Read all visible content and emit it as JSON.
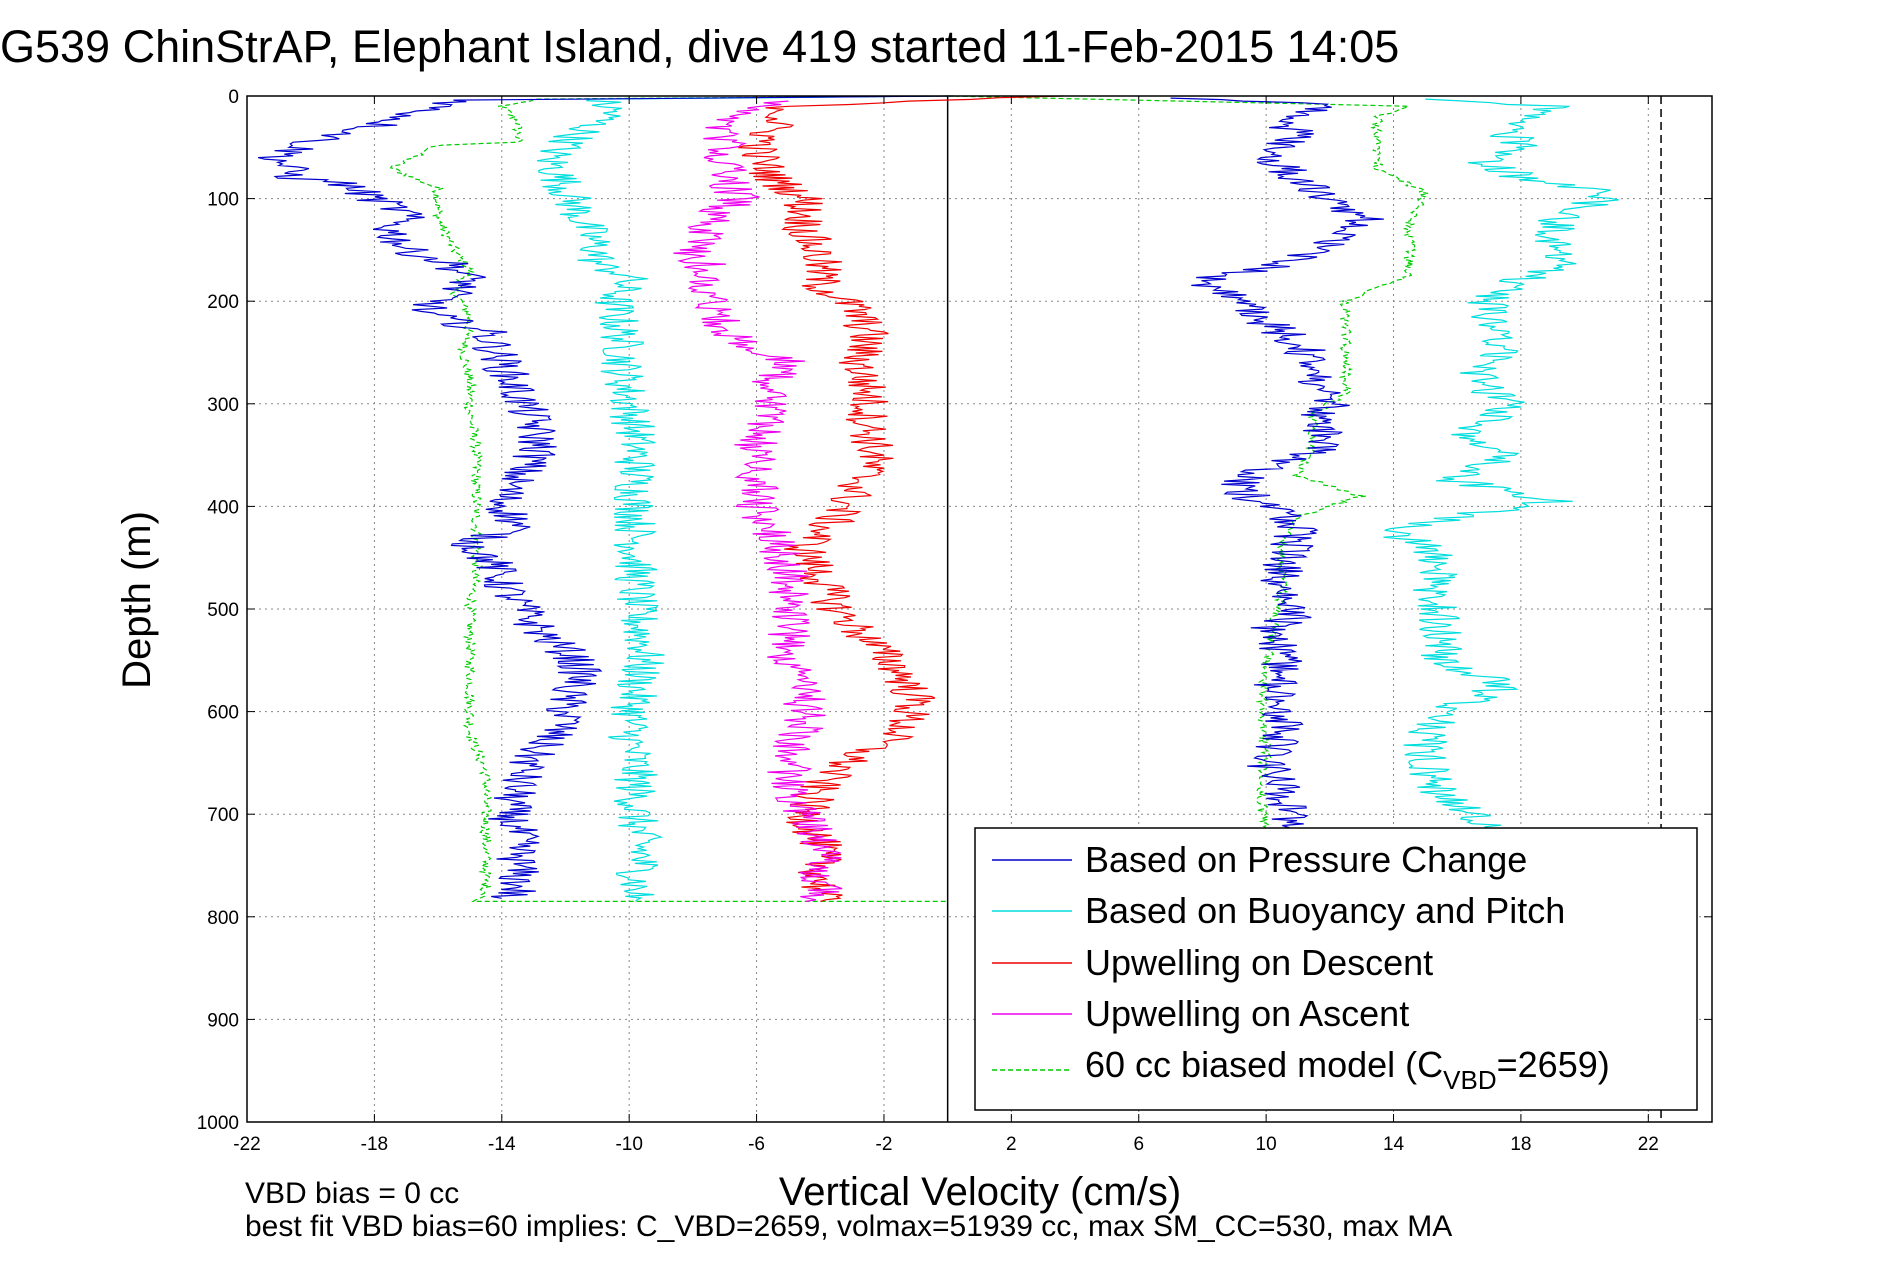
{
  "chart_data": {
    "type": "line",
    "title": "G539 ChinStrAP, Elephant Island, dive 419 started 11-Feb-2015 14:05",
    "xlabel": "Vertical Velocity (cm/s)",
    "ylabel": "Depth (m)",
    "xlim": [
      -22,
      24
    ],
    "ylim": [
      0,
      1000
    ],
    "y_reversed": true,
    "grid": true,
    "legend_position": "bottom-right",
    "xticks": [
      -22,
      -18,
      -14,
      -10,
      -6,
      -2,
      2,
      6,
      10,
      14,
      18,
      22
    ],
    "yticks": [
      0,
      100,
      200,
      300,
      400,
      500,
      600,
      700,
      800,
      900,
      1000
    ],
    "xtick_labels": [
      "-22",
      "-18",
      "-14",
      "-10",
      "-6",
      "-2",
      "2",
      "6",
      "10",
      "14",
      "18",
      "22"
    ],
    "ytick_labels": [
      "0",
      "100",
      "200",
      "300",
      "400",
      "500",
      "600",
      "700",
      "800",
      "900",
      "1000"
    ],
    "reference_lines": [
      {
        "axis": "x",
        "value": 0,
        "style": "solid",
        "color": "#000000"
      },
      {
        "axis": "x",
        "value": 22.4,
        "style": "dashed",
        "color": "#000000"
      }
    ],
    "series": [
      {
        "name": "Based on Pressure Change",
        "color": "#0000cc",
        "style": "solid",
        "descent": [
          [
            0,
            0
          ],
          [
            -15,
            4
          ],
          [
            -16,
            10
          ],
          [
            -18,
            30
          ],
          [
            -20,
            45
          ],
          [
            -21,
            60
          ],
          [
            -20.5,
            80
          ],
          [
            -19,
            85
          ],
          [
            -18,
            100
          ],
          [
            -17,
            115
          ],
          [
            -17.5,
            130
          ],
          [
            -17,
            150
          ],
          [
            -15.5,
            165
          ],
          [
            -15,
            180
          ],
          [
            -16,
            200
          ],
          [
            -16.5,
            210
          ],
          [
            -14.5,
            230
          ],
          [
            -14,
            260
          ],
          [
            -13.5,
            290
          ],
          [
            -13,
            320
          ],
          [
            -12.8,
            345
          ],
          [
            -13.5,
            370
          ],
          [
            -14,
            395
          ],
          [
            -13.5,
            420
          ],
          [
            -15,
            435
          ],
          [
            -14.3,
            455
          ],
          [
            -14,
            475
          ],
          [
            -13.5,
            495
          ],
          [
            -13,
            515
          ],
          [
            -12.5,
            530
          ],
          [
            -11.8,
            545
          ],
          [
            -11.5,
            565
          ],
          [
            -12,
            585
          ],
          [
            -12,
            610
          ],
          [
            -13,
            640
          ],
          [
            -13.5,
            670
          ],
          [
            -13.8,
            700
          ],
          [
            -13.5,
            720
          ],
          [
            -13.5,
            750
          ],
          [
            -13.5,
            775
          ],
          [
            -14,
            782
          ]
        ],
        "ascent": [
          [
            12,
            785
          ],
          [
            11,
            760
          ],
          [
            10.5,
            730
          ],
          [
            10.8,
            700
          ],
          [
            10.5,
            680
          ],
          [
            10,
            650
          ],
          [
            10.5,
            620
          ],
          [
            10.5,
            600
          ],
          [
            10.2,
            580
          ],
          [
            10.5,
            560
          ],
          [
            10.5,
            540
          ],
          [
            10,
            520
          ],
          [
            11,
            505
          ],
          [
            10.5,
            480
          ],
          [
            10.5,
            460
          ],
          [
            10.8,
            440
          ],
          [
            11,
            420
          ],
          [
            10,
            400
          ],
          [
            9,
            380
          ],
          [
            10,
            360
          ],
          [
            12,
            340
          ],
          [
            11.5,
            320
          ],
          [
            12,
            300
          ],
          [
            11.5,
            280
          ],
          [
            11.5,
            260
          ],
          [
            11,
            240
          ],
          [
            10,
            220
          ],
          [
            9.5,
            200
          ],
          [
            8,
            180
          ],
          [
            11,
            160
          ],
          [
            12,
            140
          ],
          [
            13,
            120
          ],
          [
            12,
            100
          ],
          [
            11,
            80
          ],
          [
            10,
            60
          ],
          [
            11,
            40
          ],
          [
            10.5,
            20
          ],
          [
            12,
            8
          ],
          [
            7,
            2
          ]
        ]
      },
      {
        "name": "Based on Buoyancy and Pitch",
        "color": "#00dddd",
        "style": "solid",
        "descent": [
          [
            0,
            0
          ],
          [
            -11,
            3
          ],
          [
            -10.5,
            15
          ],
          [
            -11.5,
            35
          ],
          [
            -12.5,
            60
          ],
          [
            -12,
            90
          ],
          [
            -11.5,
            120
          ],
          [
            -11,
            150
          ],
          [
            -11,
            165
          ],
          [
            -10,
            175
          ],
          [
            -10.5,
            200
          ],
          [
            -10.2,
            240
          ],
          [
            -10.2,
            270
          ],
          [
            -10,
            300
          ],
          [
            -9.8,
            330
          ],
          [
            -9.8,
            360
          ],
          [
            -9.8,
            390
          ],
          [
            -9.8,
            420
          ],
          [
            -9.8,
            460
          ],
          [
            -9.8,
            500
          ],
          [
            -9.5,
            540
          ],
          [
            -9.8,
            580
          ],
          [
            -10,
            620
          ],
          [
            -9.8,
            660
          ],
          [
            -9.8,
            700
          ],
          [
            -9.6,
            740
          ],
          [
            -9.8,
            775
          ],
          [
            -9.8,
            785
          ]
        ],
        "ascent": [
          [
            14.5,
            785
          ],
          [
            16,
            760
          ],
          [
            16.5,
            740
          ],
          [
            17.5,
            720
          ],
          [
            16.5,
            700
          ],
          [
            15.5,
            680
          ],
          [
            15,
            650
          ],
          [
            15,
            620
          ],
          [
            15.5,
            600
          ],
          [
            17.5,
            575
          ],
          [
            15.5,
            550
          ],
          [
            15.5,
            520
          ],
          [
            15.5,
            500
          ],
          [
            15,
            480
          ],
          [
            15.5,
            460
          ],
          [
            15,
            440
          ],
          [
            14,
            425
          ],
          [
            16,
            410
          ],
          [
            19,
            395
          ],
          [
            16,
            375
          ],
          [
            17.5,
            350
          ],
          [
            16.5,
            330
          ],
          [
            17.5,
            300
          ],
          [
            16.5,
            270
          ],
          [
            17.5,
            250
          ],
          [
            17,
            220
          ],
          [
            17,
            200
          ],
          [
            17.5,
            185
          ],
          [
            19.5,
            165
          ],
          [
            19,
            140
          ],
          [
            19,
            120
          ],
          [
            21,
            95
          ],
          [
            18,
            80
          ],
          [
            17,
            65
          ],
          [
            18,
            50
          ],
          [
            17.5,
            30
          ],
          [
            19,
            10
          ],
          [
            15,
            3
          ]
        ]
      },
      {
        "name": "Upwelling on Descent",
        "color": "#ee0000",
        "style": "solid",
        "values": [
          [
            3,
            0
          ],
          [
            -5,
            10
          ],
          [
            -5.5,
            30
          ],
          [
            -6,
            55
          ],
          [
            -5.5,
            80
          ],
          [
            -4.5,
            100
          ],
          [
            -4.5,
            130
          ],
          [
            -4,
            160
          ],
          [
            -4,
            185
          ],
          [
            -3,
            205
          ],
          [
            -2.5,
            230
          ],
          [
            -2.8,
            260
          ],
          [
            -2.5,
            290
          ],
          [
            -2.5,
            320
          ],
          [
            -2.3,
            350
          ],
          [
            -2.8,
            380
          ],
          [
            -3.5,
            410
          ],
          [
            -4.5,
            440
          ],
          [
            -4,
            470
          ],
          [
            -3.5,
            500
          ],
          [
            -2.5,
            530
          ],
          [
            -1.5,
            560
          ],
          [
            -1,
            590
          ],
          [
            -1.5,
            620
          ],
          [
            -3,
            645
          ],
          [
            -4,
            670
          ],
          [
            -4.5,
            700
          ],
          [
            -4,
            730
          ],
          [
            -4,
            760
          ],
          [
            -4,
            785
          ]
        ]
      },
      {
        "name": "Upwelling on Ascent",
        "color": "#ee00ee",
        "style": "solid",
        "values": [
          [
            -4,
            785
          ],
          [
            -4,
            760
          ],
          [
            -4,
            730
          ],
          [
            -4.5,
            700
          ],
          [
            -5,
            670
          ],
          [
            -5,
            640
          ],
          [
            -4.5,
            610
          ],
          [
            -4.5,
            580
          ],
          [
            -5,
            550
          ],
          [
            -5,
            520
          ],
          [
            -5,
            490
          ],
          [
            -5,
            460
          ],
          [
            -5.5,
            430
          ],
          [
            -6,
            400
          ],
          [
            -6,
            370
          ],
          [
            -6,
            340
          ],
          [
            -5.5,
            310
          ],
          [
            -5.5,
            280
          ],
          [
            -5,
            260
          ],
          [
            -7,
            230
          ],
          [
            -7.5,
            200
          ],
          [
            -7.5,
            170
          ],
          [
            -8,
            150
          ],
          [
            -7.5,
            120
          ],
          [
            -6.5,
            100
          ],
          [
            -7,
            80
          ],
          [
            -7,
            60
          ],
          [
            -7,
            40
          ],
          [
            -7,
            20
          ],
          [
            -5,
            5
          ]
        ]
      },
      {
        "name": "60 cc biased model (C_VBD=2659)",
        "legend_main": "60 cc biased model (C",
        "legend_sub": "VBD",
        "legend_tail": "=2659)",
        "color": "#00cc00",
        "style": "dashed",
        "descent": [
          [
            0,
            0
          ],
          [
            -13,
            3
          ],
          [
            -14,
            10
          ],
          [
            -13.5,
            25
          ],
          [
            -13.5,
            45
          ],
          [
            -16,
            48
          ],
          [
            -17.5,
            70
          ],
          [
            -16,
            90
          ],
          [
            -16,
            120
          ],
          [
            -15.5,
            150
          ],
          [
            -15,
            170
          ],
          [
            -15.5,
            190
          ],
          [
            -15,
            215
          ],
          [
            -15.2,
            250
          ],
          [
            -15,
            280
          ],
          [
            -15,
            310
          ],
          [
            -14.8,
            340
          ],
          [
            -14.8,
            370
          ],
          [
            -14.8,
            400
          ],
          [
            -14.8,
            430
          ],
          [
            -14.8,
            460
          ],
          [
            -15,
            500
          ],
          [
            -15,
            540
          ],
          [
            -15,
            580
          ],
          [
            -15,
            620
          ],
          [
            -14.5,
            660
          ],
          [
            -14.5,
            700
          ],
          [
            -14.5,
            740
          ],
          [
            -14.5,
            780
          ],
          [
            -15,
            785
          ],
          [
            0,
            785
          ]
        ],
        "ascent": [
          [
            9.8,
            785
          ],
          [
            9.8,
            760
          ],
          [
            10,
            720
          ],
          [
            9.8,
            680
          ],
          [
            10,
            640
          ],
          [
            9.8,
            600
          ],
          [
            10,
            560
          ],
          [
            10.2,
            520
          ],
          [
            10.5,
            480
          ],
          [
            10.5,
            440
          ],
          [
            11,
            410
          ],
          [
            13,
            390
          ],
          [
            11,
            370
          ],
          [
            11.5,
            340
          ],
          [
            11.5,
            310
          ],
          [
            12.5,
            290
          ],
          [
            12.5,
            260
          ],
          [
            12.5,
            230
          ],
          [
            12.5,
            200
          ],
          [
            14.5,
            175
          ],
          [
            14.5,
            150
          ],
          [
            14.5,
            120
          ],
          [
            15,
            95
          ],
          [
            13.5,
            70
          ],
          [
            13.5,
            45
          ],
          [
            13.5,
            20
          ],
          [
            14.5,
            10
          ],
          [
            0,
            0
          ]
        ]
      }
    ],
    "annotations": [
      "VBD bias = 0 cc",
      "best fit VBD bias=60 implies: C_VBD=2659, volmax=51939 cc, max SM_CC=530, max MA"
    ]
  }
}
